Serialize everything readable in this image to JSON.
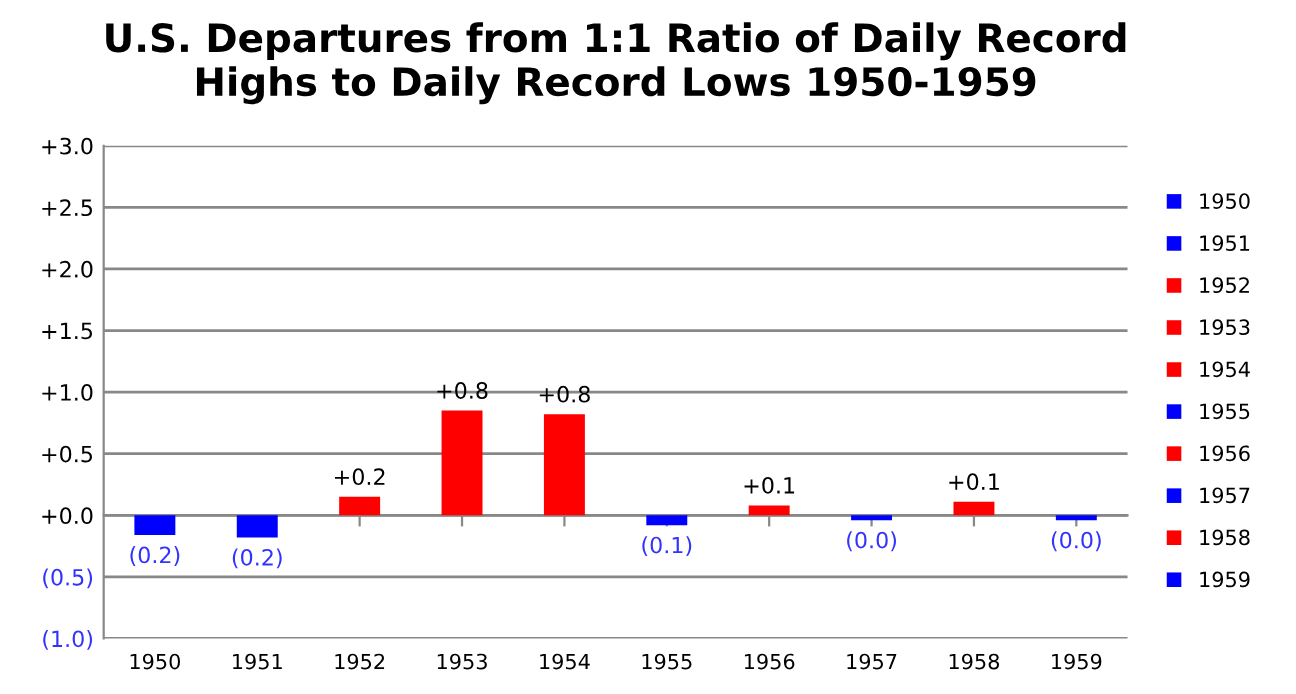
{
  "chart_data": {
    "type": "bar",
    "title": "U.S. Departures from 1:1 Ratio of Daily Record\nHighs to Daily Record Lows 1950-1959",
    "categories": [
      "1950",
      "1951",
      "1952",
      "1953",
      "1954",
      "1955",
      "1956",
      "1957",
      "1958",
      "1959"
    ],
    "series": [
      {
        "name": "1950",
        "color": "#0000ff",
        "values": [
          -0.16,
          null,
          null,
          null,
          null,
          null,
          null,
          null,
          null,
          null
        ],
        "value_labels": [
          "(0.2)",
          null,
          null,
          null,
          null,
          null,
          null,
          null,
          null,
          null
        ]
      },
      {
        "name": "1951",
        "color": "#0000ff",
        "values": [
          null,
          -0.18,
          null,
          null,
          null,
          null,
          null,
          null,
          null,
          null
        ],
        "value_labels": [
          null,
          "(0.2)",
          null,
          null,
          null,
          null,
          null,
          null,
          null,
          null
        ]
      },
      {
        "name": "1952",
        "color": "#ff0000",
        "values": [
          null,
          null,
          0.15,
          null,
          null,
          null,
          null,
          null,
          null,
          null
        ],
        "value_labels": [
          null,
          null,
          "+0.2",
          null,
          null,
          null,
          null,
          null,
          null,
          null
        ]
      },
      {
        "name": "1953",
        "color": "#ff0000",
        "values": [
          null,
          null,
          null,
          0.85,
          null,
          null,
          null,
          null,
          null,
          null
        ],
        "value_labels": [
          null,
          null,
          null,
          "+0.8",
          null,
          null,
          null,
          null,
          null,
          null
        ]
      },
      {
        "name": "1954",
        "color": "#ff0000",
        "values": [
          null,
          null,
          null,
          null,
          0.82,
          null,
          null,
          null,
          null,
          null
        ],
        "value_labels": [
          null,
          null,
          null,
          null,
          "+0.8",
          null,
          null,
          null,
          null,
          null
        ]
      },
      {
        "name": "1955",
        "color": "#0000ff",
        "values": [
          null,
          null,
          null,
          null,
          null,
          -0.08,
          null,
          null,
          null,
          null
        ],
        "value_labels": [
          null,
          null,
          null,
          null,
          null,
          "(0.1)",
          null,
          null,
          null,
          null
        ]
      },
      {
        "name": "1956",
        "color": "#ff0000",
        "values": [
          null,
          null,
          null,
          null,
          null,
          null,
          0.08,
          null,
          null,
          null
        ],
        "value_labels": [
          null,
          null,
          null,
          null,
          null,
          null,
          "+0.1",
          null,
          null,
          null
        ]
      },
      {
        "name": "1957",
        "color": "#0000ff",
        "values": [
          null,
          null,
          null,
          null,
          null,
          null,
          null,
          -0.04,
          null,
          null
        ],
        "value_labels": [
          null,
          null,
          null,
          null,
          null,
          null,
          null,
          "(0.0)",
          null,
          null
        ]
      },
      {
        "name": "1958",
        "color": "#ff0000",
        "values": [
          null,
          null,
          null,
          null,
          null,
          null,
          null,
          null,
          0.11,
          null
        ],
        "value_labels": [
          null,
          null,
          null,
          null,
          null,
          null,
          null,
          null,
          "+0.1",
          null
        ]
      },
      {
        "name": "1959",
        "color": "#0000ff",
        "values": [
          null,
          null,
          null,
          null,
          null,
          null,
          null,
          null,
          null,
          -0.04
        ],
        "value_labels": [
          null,
          null,
          null,
          null,
          null,
          null,
          null,
          null,
          null,
          "(0.0)"
        ]
      }
    ],
    "ylim": [
      -1.0,
      3.0
    ],
    "yticks": [
      {
        "value": -1.0,
        "label": "(1.0)"
      },
      {
        "value": -0.5,
        "label": "(0.5)"
      },
      {
        "value": 0.0,
        "label": "+0.0"
      },
      {
        "value": 0.5,
        "label": "+0.5"
      },
      {
        "value": 1.0,
        "label": "+1.0"
      },
      {
        "value": 1.5,
        "label": "+1.5"
      },
      {
        "value": 2.0,
        "label": "+2.0"
      },
      {
        "value": 2.5,
        "label": "+2.5"
      },
      {
        "value": 3.0,
        "label": "+3.0"
      }
    ],
    "grid": "y",
    "legend": "right"
  }
}
